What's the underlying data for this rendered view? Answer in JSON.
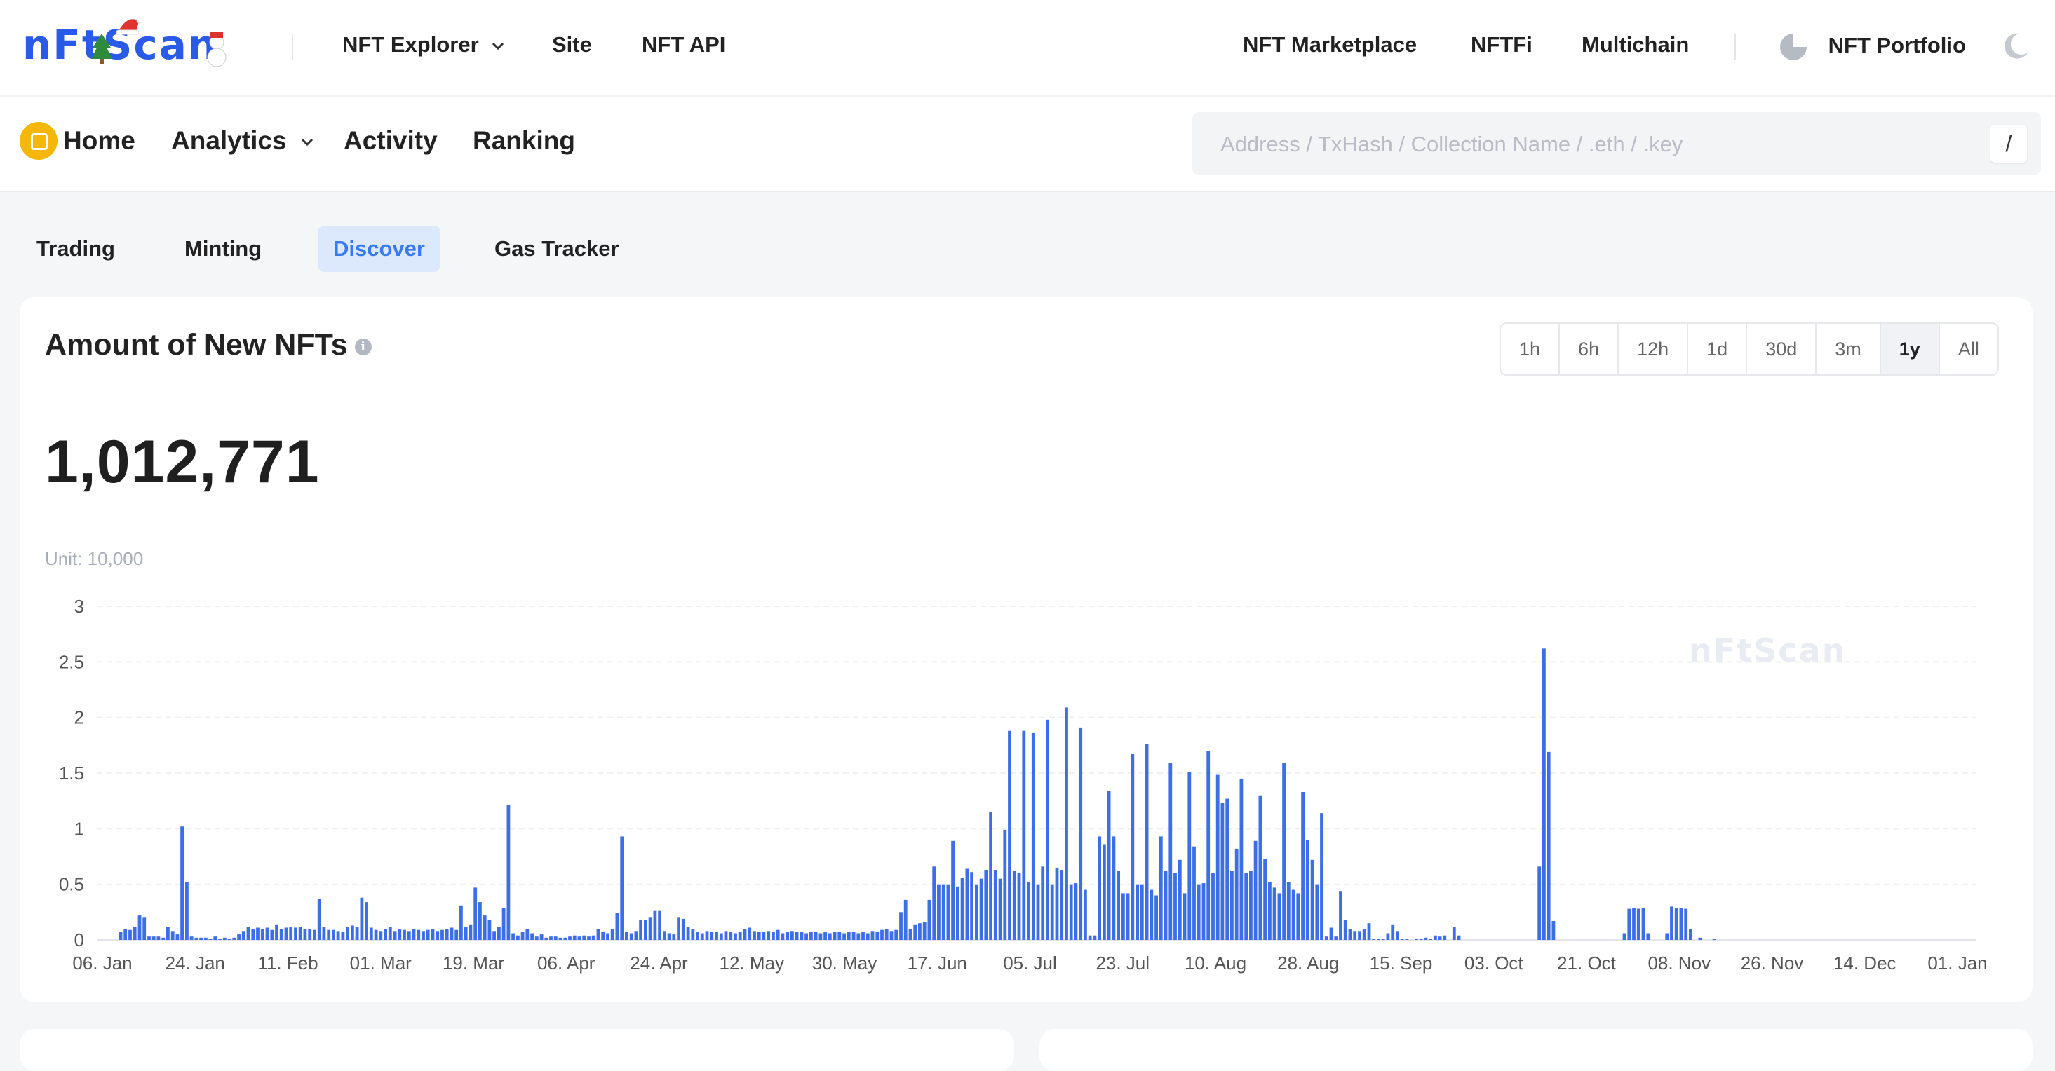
{
  "logo": {
    "text": "nFtScan"
  },
  "topnav": {
    "explorer": "NFT Explorer",
    "site": "Site",
    "api": "NFT API",
    "marketplace": "NFT Marketplace",
    "nftfi": "NFTFi",
    "multichain": "Multichain",
    "portfolio": "NFT Portfolio"
  },
  "subnav": {
    "home": "Home",
    "analytics": "Analytics",
    "activity": "Activity",
    "ranking": "Ranking"
  },
  "search": {
    "placeholder": "Address / TxHash / Collection Name / .eth / .key",
    "shortcut": "/"
  },
  "tabs": [
    "Trading",
    "Minting",
    "Discover",
    "Gas Tracker"
  ],
  "active_tab": "Discover",
  "card": {
    "title": "Amount of New NFTs",
    "info": "i",
    "total": "1,012,771",
    "unit": "Unit: 10,000",
    "watermark": "nFtScan",
    "ranges": [
      "1h",
      "6h",
      "12h",
      "1d",
      "30d",
      "3m",
      "1y",
      "All"
    ],
    "active_range": "1y"
  },
  "colors": {
    "bar": "#3c6ee6",
    "accent": "#3a7af0",
    "tab_active_bg": "#dce8fc"
  },
  "chart_data": {
    "type": "bar",
    "ylabel": "Unit: 10,000",
    "ylim": [
      0,
      3
    ],
    "yticks": [
      "0",
      "0.5",
      "1",
      "1.5",
      "2",
      "2.5",
      "3"
    ],
    "xticks": [
      "06. Jan",
      "24. Jan",
      "11. Feb",
      "01. Mar",
      "19. Mar",
      "06. Apr",
      "24. Apr",
      "12. May",
      "30. May",
      "17. Jun",
      "05. Jul",
      "23. Jul",
      "10. Aug",
      "28. Aug",
      "15. Sep",
      "03. Oct",
      "21. Oct",
      "08. Nov",
      "26. Nov",
      "14. Dec",
      "01. Jan"
    ],
    "series": [
      {
        "values": [
          0.07,
          0.1,
          0.09,
          0.12,
          0.22,
          0.2,
          0.03,
          0.03,
          0.03,
          0.02,
          0.12,
          0.08,
          0.05,
          1.02,
          0.52,
          0.03,
          0.02,
          0.02,
          0.02,
          0.01,
          0.03,
          0.01,
          0.02,
          0.01,
          0.02,
          0.05,
          0.08,
          0.12,
          0.1,
          0.11,
          0.1,
          0.11,
          0.09,
          0.14,
          0.1,
          0.11,
          0.12,
          0.11,
          0.12,
          0.1,
          0.1,
          0.09,
          0.37,
          0.12,
          0.09,
          0.09,
          0.08,
          0.07,
          0.12,
          0.13,
          0.12,
          0.38,
          0.34,
          0.11,
          0.09,
          0.08,
          0.1,
          0.12,
          0.08,
          0.1,
          0.09,
          0.08,
          0.1,
          0.09,
          0.08,
          0.09,
          0.1,
          0.08,
          0.09,
          0.1,
          0.11,
          0.09,
          0.31,
          0.12,
          0.14,
          0.47,
          0.34,
          0.22,
          0.18,
          0.08,
          0.12,
          0.29,
          1.21,
          0.06,
          0.04,
          0.07,
          0.1,
          0.06,
          0.03,
          0.05,
          0.02,
          0.03,
          0.03,
          0.02,
          0.02,
          0.03,
          0.04,
          0.03,
          0.04,
          0.03,
          0.04,
          0.1,
          0.07,
          0.06,
          0.1,
          0.24,
          0.93,
          0.07,
          0.06,
          0.08,
          0.18,
          0.18,
          0.2,
          0.26,
          0.26,
          0.08,
          0.06,
          0.05,
          0.2,
          0.19,
          0.12,
          0.1,
          0.07,
          0.06,
          0.08,
          0.07,
          0.07,
          0.06,
          0.08,
          0.07,
          0.06,
          0.07,
          0.1,
          0.11,
          0.08,
          0.07,
          0.07,
          0.08,
          0.07,
          0.09,
          0.06,
          0.07,
          0.08,
          0.07,
          0.07,
          0.06,
          0.07,
          0.07,
          0.06,
          0.07,
          0.06,
          0.07,
          0.07,
          0.06,
          0.07,
          0.07,
          0.06,
          0.07,
          0.06,
          0.08,
          0.07,
          0.09,
          0.1,
          0.08,
          0.09,
          0.25,
          0.36,
          0.1,
          0.14,
          0.15,
          0.16,
          0.36,
          0.66,
          0.5,
          0.5,
          0.5,
          0.89,
          0.48,
          0.56,
          0.64,
          0.61,
          0.5,
          0.55,
          0.63,
          1.15,
          0.63,
          0.55,
          0.99,
          1.88,
          0.62,
          0.6,
          1.88,
          0.52,
          1.86,
          0.5,
          0.66,
          1.98,
          0.5,
          0.65,
          0.63,
          2.09,
          0.5,
          0.51,
          1.91,
          0.45,
          0.04,
          0.04,
          0.93,
          0.86,
          1.34,
          0.93,
          0.62,
          0.42,
          0.42,
          1.67,
          0.5,
          0.5,
          1.76,
          0.45,
          0.4,
          0.93,
          0.62,
          1.59,
          0.6,
          0.72,
          0.42,
          1.51,
          0.84,
          0.5,
          0.51,
          1.7,
          0.6,
          1.49,
          1.23,
          1.27,
          0.62,
          0.82,
          1.45,
          0.6,
          0.62,
          0.89,
          1.3,
          0.73,
          0.52,
          0.47,
          0.42,
          1.59,
          0.52,
          0.45,
          0.42,
          1.33,
          0.9,
          0.72,
          0.5,
          1.14,
          0.03,
          0.11,
          0.03,
          0.44,
          0.18,
          0.1,
          0.08,
          0.08,
          0.1,
          0.15,
          0.01,
          0.01,
          0.01,
          0.06,
          0.14,
          0.08,
          0.01,
          0.01,
          0.0,
          0.01,
          0.01,
          0.02,
          0.01,
          0.04,
          0.03,
          0.04,
          0.0,
          0.12,
          0.04,
          0.0,
          0.0,
          0.0,
          0.0,
          0.0,
          0.0,
          0.0,
          0.0,
          0.0,
          0.0,
          0.0,
          0.0,
          0.0,
          0.0,
          0.0,
          0.0,
          0.66,
          2.62,
          1.69,
          0.17,
          0.0,
          0.0,
          0.0,
          0.0,
          0.0,
          0.0,
          0.0,
          0.0,
          0.0,
          0.0,
          0.0,
          0.0,
          0.0,
          0.0,
          0.06,
          0.28,
          0.29,
          0.28,
          0.29,
          0.06,
          0.0,
          0.0,
          0.0,
          0.06,
          0.3,
          0.29,
          0.29,
          0.28,
          0.1,
          0.0,
          0.02,
          0.0,
          0.0,
          0.01,
          0.0,
          0.0,
          0.0,
          0.0,
          0.0,
          0.0,
          0.0,
          0.0,
          0.0,
          0.0,
          0.0,
          0.0,
          0.0,
          0.0,
          0.0,
          0.0,
          0.0,
          0.0,
          0.0,
          0.0,
          0.0,
          0.0,
          0.0,
          0.0,
          0.0,
          0.0,
          0.0,
          0.0,
          0.0,
          0.0,
          0.0,
          0.0,
          0.0,
          0.0,
          0.0,
          0.0,
          0.0,
          0.0,
          0.0,
          0.0,
          0.0,
          0.0,
          0.0,
          0.0,
          0.0,
          0.0,
          0.0,
          0.0,
          0.0,
          0.0,
          0.0
        ]
      }
    ]
  }
}
